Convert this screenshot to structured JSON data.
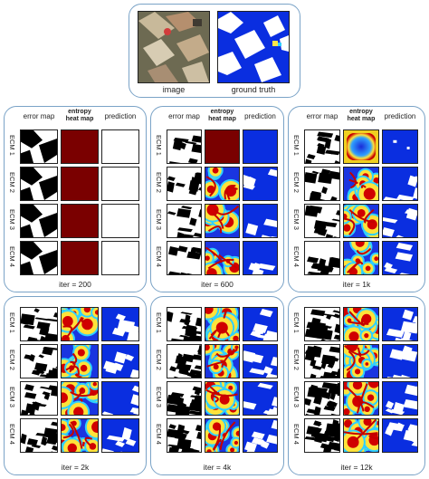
{
  "top": {
    "captions": [
      "image",
      "ground truth"
    ]
  },
  "headers": {
    "error": "error map",
    "entropy": "entropy\nheat map",
    "prediction": "prediction"
  },
  "row_labels": [
    "ECM 1",
    "ECM 2",
    "ECM 3",
    "ECM 4"
  ],
  "panels": [
    {
      "iter": "iter = 200",
      "stage": 0
    },
    {
      "iter": "iter = 600",
      "stage": 1
    },
    {
      "iter": "iter = 1k",
      "stage": 2
    },
    {
      "iter": "iter = 2k",
      "stage": 3
    },
    {
      "iter": "iter = 4k",
      "stage": 4
    },
    {
      "iter": "iter = 12k",
      "stage": 5
    }
  ],
  "colors": {
    "border": "#7aa3c7",
    "blue": "#0a2ee0",
    "darkred": "#7a0000"
  }
}
